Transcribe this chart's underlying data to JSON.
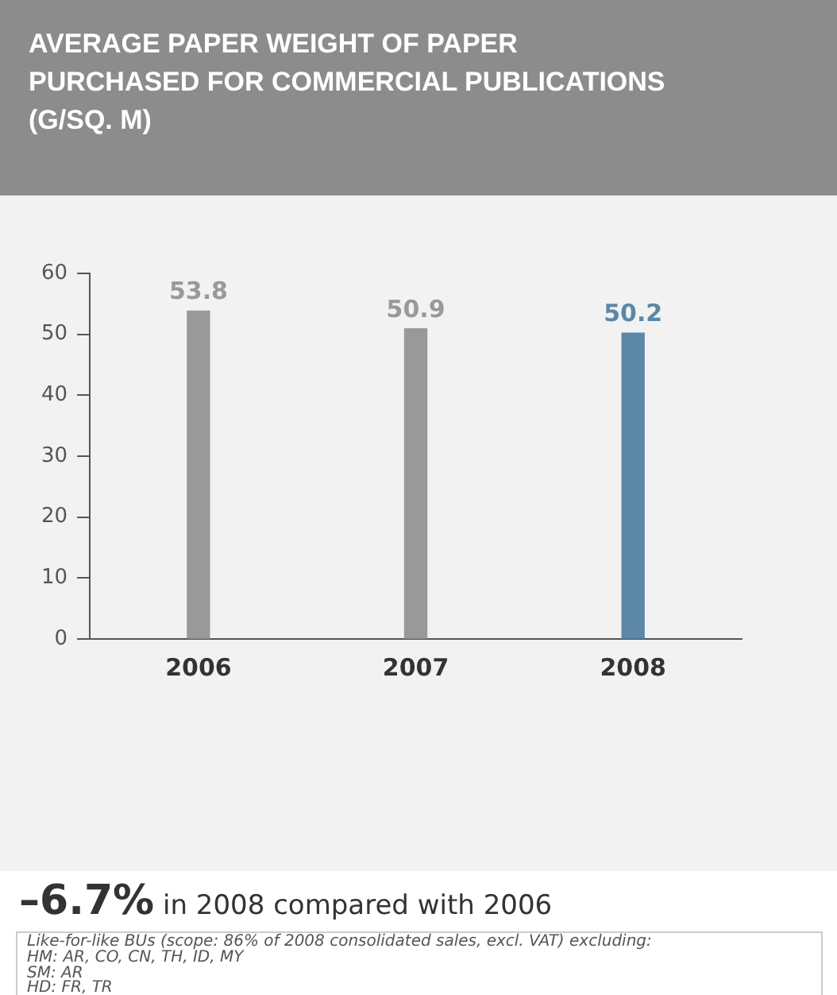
{
  "chart_data": {
    "type": "bar",
    "title": "AVERAGE PAPER WEIGHT OF PAPER PURCHASED FOR COMMERCIAL PUBLICATIONS (G/SQ. M)",
    "categories": [
      "2006",
      "2007",
      "2008"
    ],
    "values": [
      53.8,
      50.9,
      50.2
    ],
    "colors": [
      "#999999",
      "#999999",
      "#5b87a8"
    ],
    "ylim": [
      0,
      60
    ],
    "yticks": [
      0,
      10,
      20,
      30,
      40,
      50,
      60
    ],
    "grid": false,
    "data_labels": true,
    "annotations": [
      "–6.7%",
      "in 2008 compared with 2006",
      "Like-for-like BUs (scope: 86% of 2008 consolidated sales, excl. VAT) excluding:",
      "HM: AR, CO, CN, TH, ID, MY",
      "SM: AR",
      "HD: FR, TR"
    ]
  }
}
